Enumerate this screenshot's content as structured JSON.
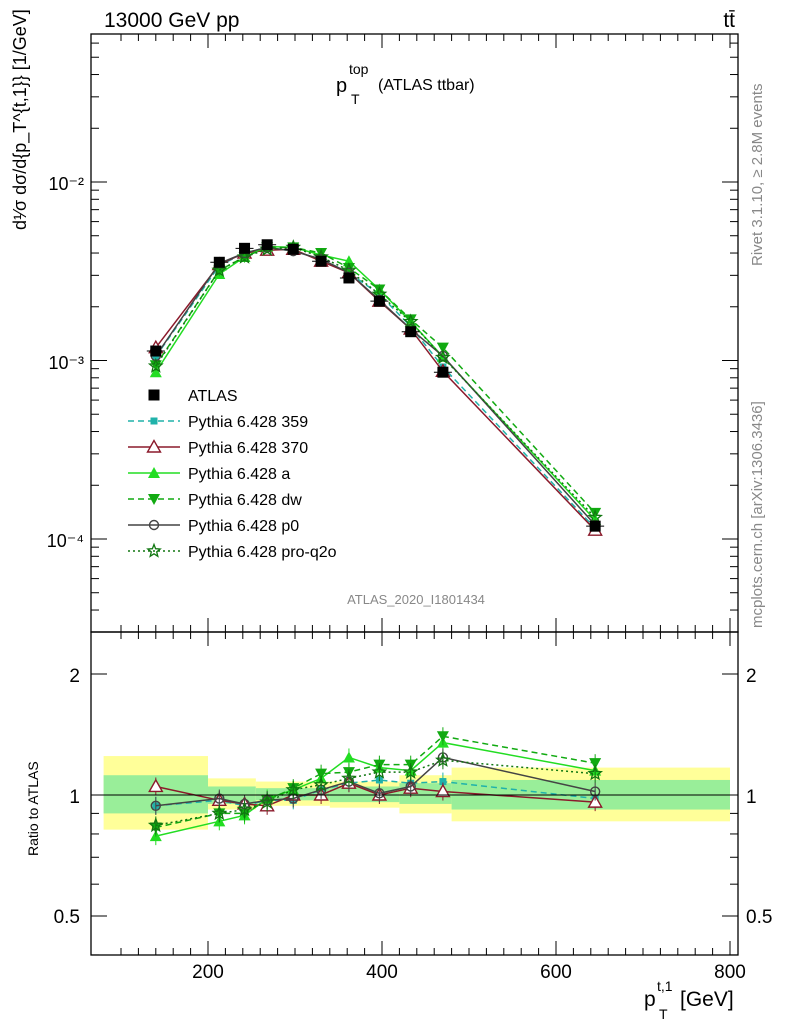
{
  "header": {
    "energy_label": "13000 GeV pp",
    "process_label": "tt̄",
    "plot_title_main": "p",
    "plot_title_sup": "top",
    "plot_title_sub": "T",
    "plot_title_suffix": "(ATLAS ttbar)",
    "analysis_id": "ATLAS_2020_I1801434",
    "side_rivet": "Rivet 3.1.10, ≥ 2.8M events",
    "side_mcplots": "mcplots.cern.ch [arXiv:1306.3436]"
  },
  "axes": {
    "ylabel_main": "d¹⁄σ dσ/d{p_T^{t,1}} [1/GeV]",
    "ylabel_ratio": "Ratio to ATLAS",
    "xlabel_main": "p",
    "xlabel_sup": "t,1",
    "xlabel_sub": "T",
    "xlabel_unit": "[GeV]",
    "main_yticks": [
      "10⁻⁴",
      "10⁻³",
      "10⁻²"
    ],
    "ratio_yticks": [
      "0.5",
      "1",
      "2"
    ],
    "xticks": [
      "200",
      "400",
      "600",
      "800"
    ]
  },
  "legend": [
    {
      "label": "ATLAS",
      "color": "#000000",
      "marker": "square-filled",
      "dash": "solid"
    },
    {
      "label": "Pythia 6.428 359",
      "color": "#20b2aa",
      "marker": "square-small",
      "dash": "dashed"
    },
    {
      "label": "Pythia 6.428 370",
      "color": "#8b1a2b",
      "marker": "triangle-open",
      "dash": "solid"
    },
    {
      "label": "Pythia 6.428 a",
      "color": "#22dd22",
      "marker": "triangle-filled",
      "dash": "solid"
    },
    {
      "label": "Pythia 6.428 dw",
      "color": "#11aa11",
      "marker": "triangle-down-filled",
      "dash": "dashed"
    },
    {
      "label": "Pythia 6.428 p0",
      "color": "#444444",
      "marker": "circle-open",
      "dash": "solid"
    },
    {
      "label": "Pythia 6.428 pro-q2o",
      "color": "#117711",
      "marker": "star",
      "dash": "dotted"
    }
  ],
  "chart_data": [
    {
      "type": "line",
      "panel": "main",
      "yscale": "log",
      "xlim": [
        70,
        800
      ],
      "ylim": [
        3e-05,
        0.1
      ],
      "x": [
        140,
        213,
        242,
        268,
        298,
        330,
        362,
        397,
        433,
        470,
        645
      ],
      "series": [
        {
          "name": "ATLAS",
          "values": [
            0.00113,
            0.00355,
            0.00425,
            0.00445,
            0.0042,
            0.0036,
            0.0029,
            0.00215,
            0.00145,
            0.00086,
            0.000118
          ]
        },
        {
          "name": "Pythia 6.428 359",
          "values": [
            0.00105,
            0.0034,
            0.004,
            0.0043,
            0.0041,
            0.0037,
            0.0031,
            0.00235,
            0.00155,
            0.00092,
            0.000115
          ]
        },
        {
          "name": "Pythia 6.428 370",
          "values": [
            0.00118,
            0.00345,
            0.004,
            0.00415,
            0.0042,
            0.0036,
            0.0031,
            0.00215,
            0.0015,
            0.00087,
            0.000112
          ]
        },
        {
          "name": "Pythia 6.428 a",
          "values": [
            0.00086,
            0.00305,
            0.0038,
            0.00435,
            0.0043,
            0.0039,
            0.0036,
            0.0025,
            0.00165,
            0.00105,
            0.000128
          ]
        },
        {
          "name": "Pythia 6.428 dw",
          "values": [
            0.00094,
            0.0032,
            0.0038,
            0.0043,
            0.0043,
            0.004,
            0.0033,
            0.0025,
            0.0017,
            0.00118,
            0.00014
          ]
        },
        {
          "name": "Pythia 6.428 p0",
          "values": [
            0.00106,
            0.0035,
            0.004,
            0.0043,
            0.0041,
            0.0037,
            0.0031,
            0.00218,
            0.0015,
            0.00106,
            0.00012
          ]
        },
        {
          "name": "Pythia 6.428 pro-q2o",
          "values": [
            0.00093,
            0.0032,
            0.0038,
            0.0042,
            0.0043,
            0.0038,
            0.0032,
            0.00235,
            0.00165,
            0.00104,
            0.000132
          ]
        }
      ]
    },
    {
      "type": "line",
      "panel": "ratio",
      "yscale": "log",
      "ylabel": "Ratio to ATLAS",
      "xlim": [
        70,
        800
      ],
      "ylim": [
        0.4,
        2.3
      ],
      "x": [
        140,
        213,
        242,
        268,
        298,
        330,
        362,
        397,
        433,
        470,
        645
      ],
      "uncertainty_bands": [
        {
          "xlo": 80,
          "xhi": 200,
          "inner": [
            0.9,
            1.12
          ],
          "outer": [
            0.82,
            1.25
          ]
        },
        {
          "xlo": 200,
          "xhi": 255,
          "inner": [
            0.95,
            1.05
          ],
          "outer": [
            0.92,
            1.1
          ]
        },
        {
          "xlo": 255,
          "xhi": 340,
          "inner": [
            0.97,
            1.04
          ],
          "outer": [
            0.94,
            1.08
          ]
        },
        {
          "xlo": 340,
          "xhi": 420,
          "inner": [
            0.96,
            1.05
          ],
          "outer": [
            0.93,
            1.08
          ]
        },
        {
          "xlo": 420,
          "xhi": 480,
          "inner": [
            0.95,
            1.07
          ],
          "outer": [
            0.9,
            1.12
          ]
        },
        {
          "xlo": 480,
          "xhi": 800,
          "inner": [
            0.92,
            1.09
          ],
          "outer": [
            0.86,
            1.17
          ]
        }
      ],
      "series": [
        {
          "name": "Pythia 6.428 359",
          "values": [
            0.94,
            0.97,
            0.94,
            0.97,
            0.97,
            1.03,
            1.07,
            1.09,
            1.07,
            1.08,
            0.98
          ]
        },
        {
          "name": "Pythia 6.428 370",
          "values": [
            1.05,
            0.97,
            0.95,
            0.94,
            1.0,
            1.0,
            1.07,
            1.0,
            1.04,
            1.02,
            0.96
          ]
        },
        {
          "name": "Pythia 6.428 a",
          "values": [
            0.79,
            0.86,
            0.89,
            0.98,
            1.03,
            1.1,
            1.24,
            1.17,
            1.15,
            1.35,
            1.15
          ]
        },
        {
          "name": "Pythia 6.428 dw",
          "values": [
            0.83,
            0.9,
            0.9,
            0.97,
            1.04,
            1.13,
            1.14,
            1.19,
            1.19,
            1.4,
            1.2
          ]
        },
        {
          "name": "Pythia 6.428 p0",
          "values": [
            0.94,
            0.98,
            0.95,
            0.97,
            0.98,
            1.03,
            1.08,
            1.01,
            1.05,
            1.24,
            1.02
          ]
        },
        {
          "name": "Pythia 6.428 pro-q2o",
          "values": [
            0.84,
            0.9,
            0.92,
            0.96,
            1.03,
            1.06,
            1.1,
            1.14,
            1.14,
            1.22,
            1.13
          ]
        }
      ]
    }
  ]
}
